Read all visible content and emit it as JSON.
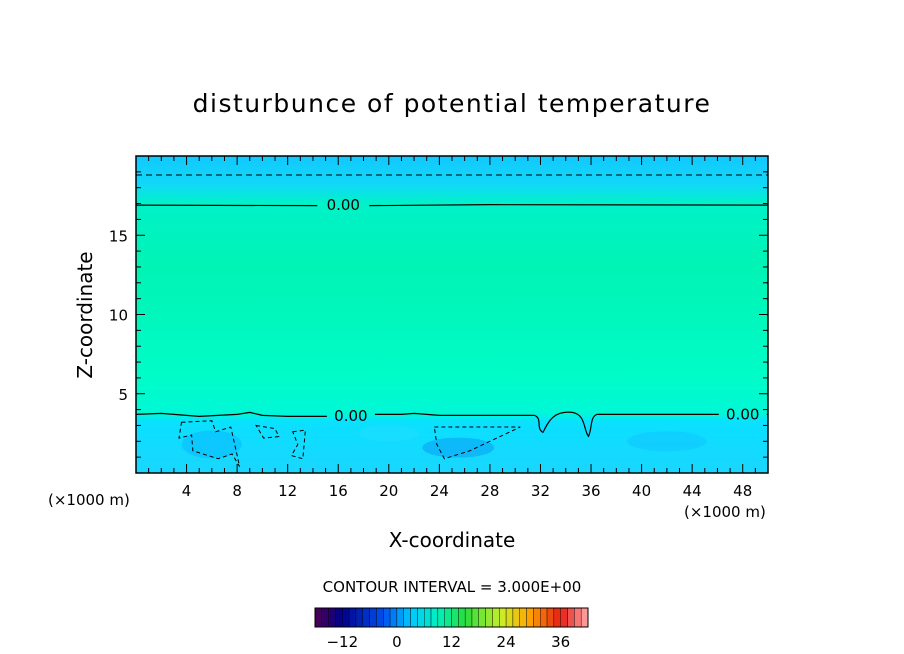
{
  "chart_data": {
    "type": "heatmap",
    "title": "disturbunce of potential temperature",
    "xlabel": "X-coordinate",
    "ylabel": "Z-coordinate",
    "x_unit_left": "(×1000 m)",
    "x_unit_right": "(×1000 m)",
    "xlim": [
      0,
      50
    ],
    "ylim": [
      0,
      20
    ],
    "x_ticks": [
      4,
      8,
      12,
      16,
      20,
      24,
      28,
      32,
      36,
      40,
      44,
      48
    ],
    "y_ticks": [
      5,
      10,
      15
    ],
    "contour_interval_text": "CONTOUR INTERVAL = 3.000E+00",
    "contour_labels": [
      {
        "text": "0.00",
        "x": 16.4,
        "y": 16.9
      },
      {
        "text": "0.00",
        "x": 17.0,
        "y": 3.6
      },
      {
        "text": "0.00",
        "x": 48.0,
        "y": 3.7
      }
    ],
    "zero_contour_upper_z": 16.9,
    "zero_contour_lower_z": 3.7,
    "dashed_line_z": 18.8,
    "field_bands": [
      {
        "z0": 18.5,
        "z1": 20.0,
        "value": -1.5
      },
      {
        "z0": 17.0,
        "z1": 18.5,
        "value": -0.8
      },
      {
        "z0": 3.7,
        "z1": 17.0,
        "value": 1.2
      },
      {
        "z0": 0.0,
        "z1": 3.7,
        "value": -1.8
      }
    ],
    "colorbar": {
      "min": -18,
      "max": 42,
      "tick_labels": [
        "−12",
        "0",
        "12",
        "24",
        "36"
      ],
      "tick_values": [
        -12,
        0,
        12,
        24,
        36
      ]
    }
  }
}
